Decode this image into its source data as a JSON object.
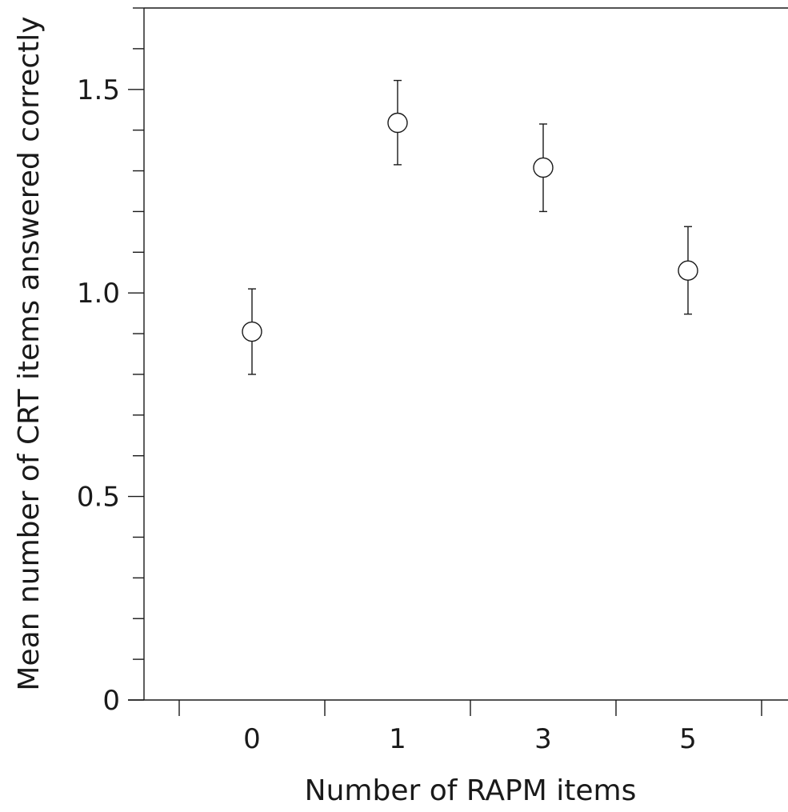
{
  "chart_data": {
    "type": "scatter",
    "title": "",
    "xlabel": "Number of RAPM items",
    "ylabel": "Mean number of CRT items answered correctly",
    "categories": [
      "0",
      "1",
      "3",
      "5"
    ],
    "values": [
      0.905,
      1.418,
      1.308,
      1.055
    ],
    "error_bars": {
      "lower": [
        0.8,
        1.315,
        1.2,
        0.948
      ],
      "upper": [
        1.01,
        1.522,
        1.415,
        1.163
      ]
    },
    "ylim": [
      0,
      1.7
    ],
    "y_ticks": [
      0,
      0.5,
      1.0,
      1.5
    ],
    "y_tick_labels": [
      "0",
      "0.5",
      "1.0",
      "1.5"
    ],
    "y_minor_step": 0.1,
    "marker": "open-circle",
    "grid": false,
    "legend": "none"
  }
}
